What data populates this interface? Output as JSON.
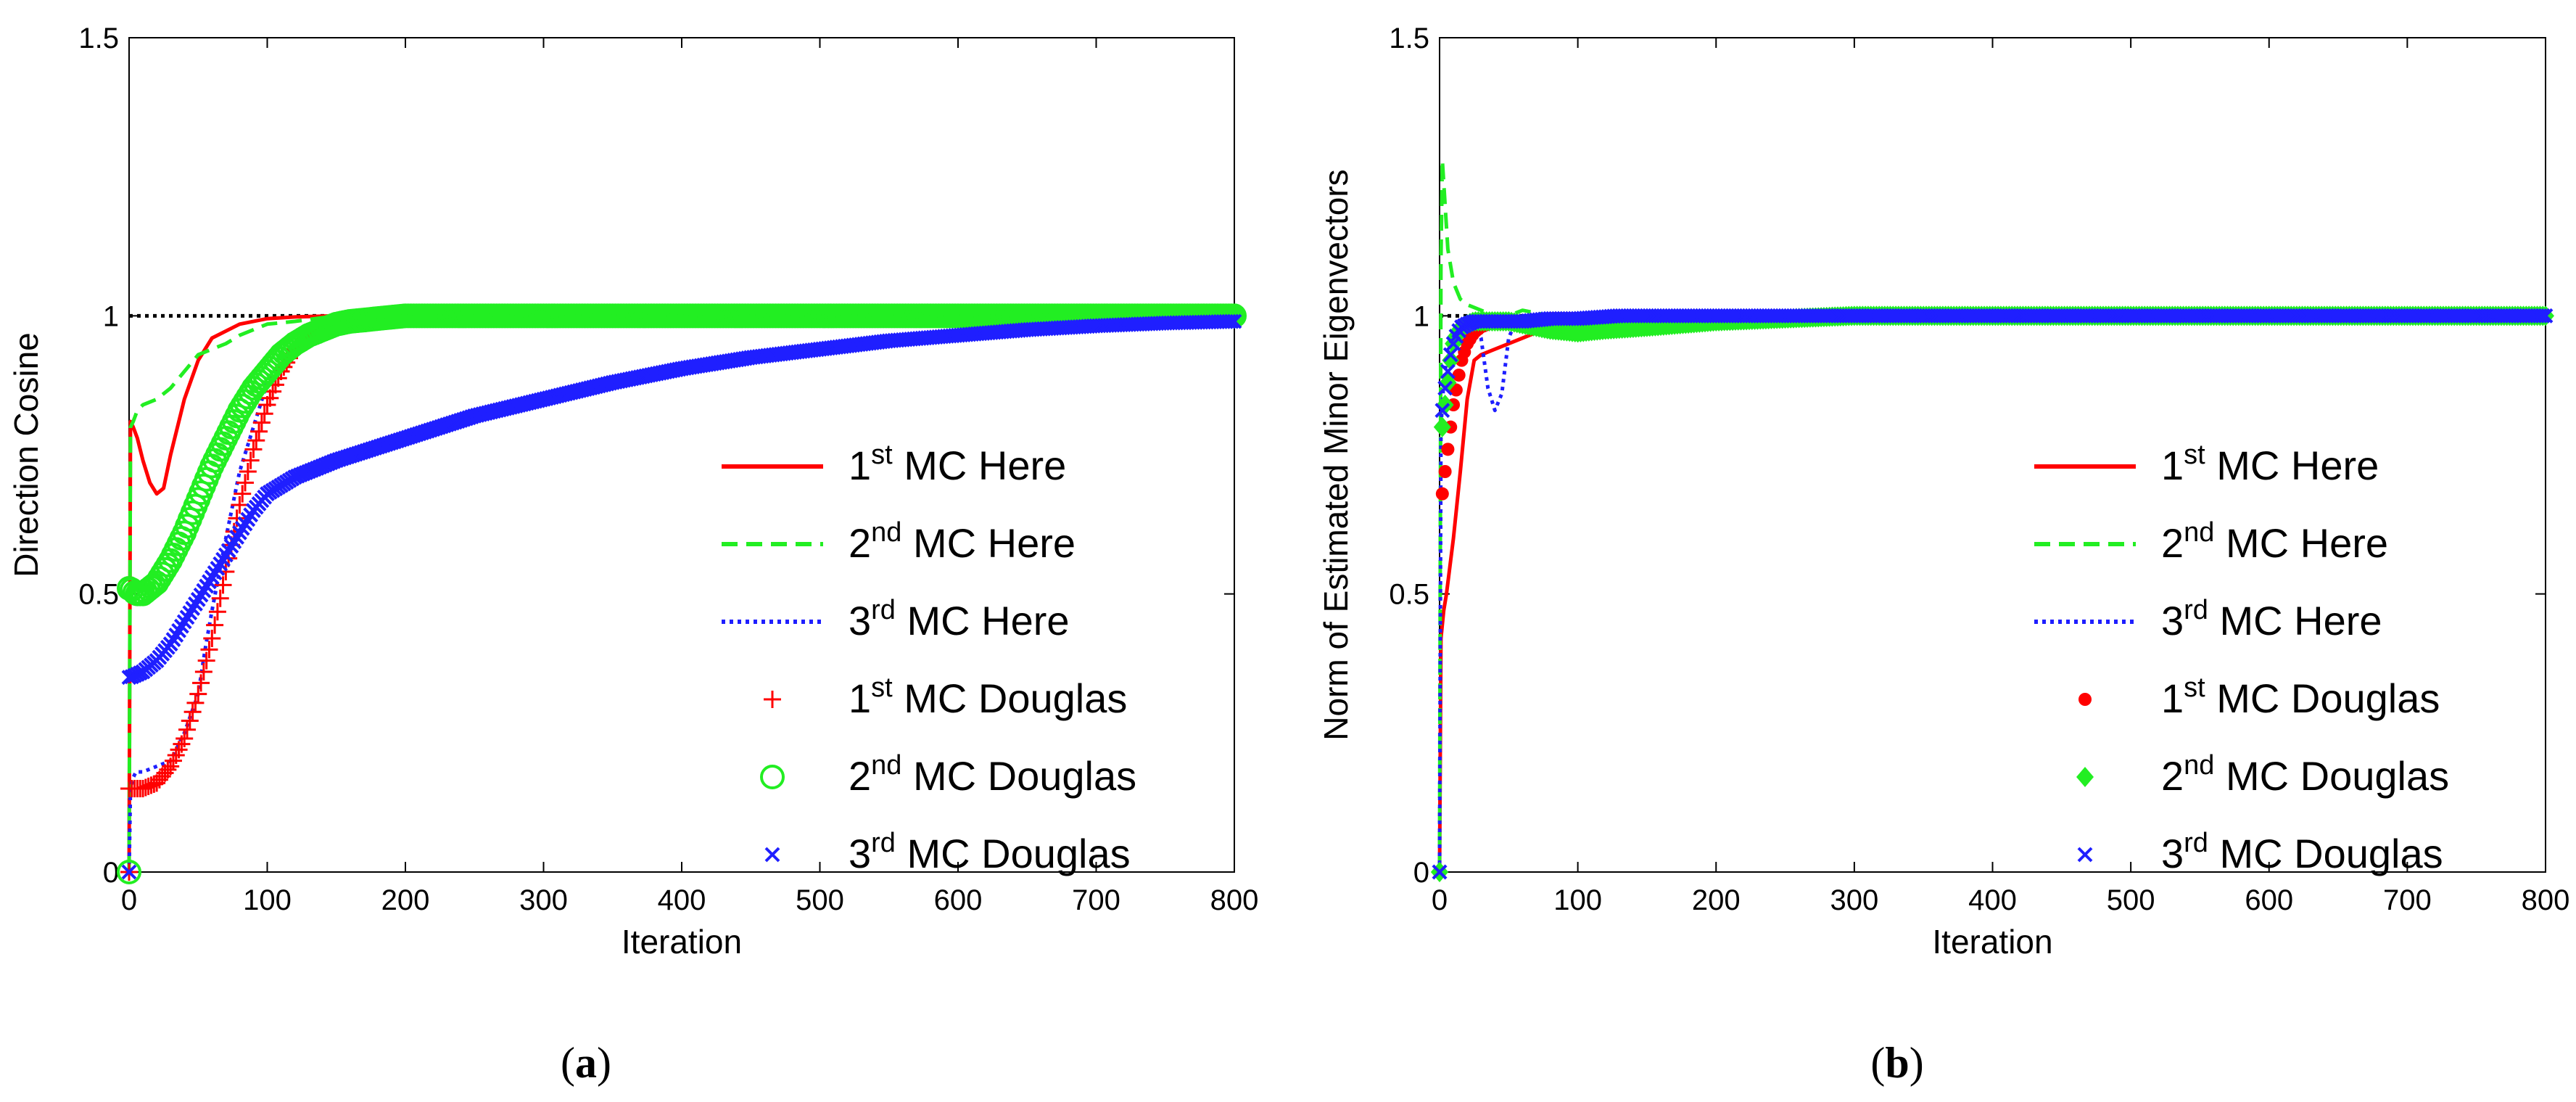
{
  "figure": {
    "captions": [
      {
        "open": "(",
        "letter": "a",
        "close": ")"
      },
      {
        "open": "(",
        "letter": "b",
        "close": ")"
      }
    ]
  },
  "chart_data": [
    {
      "type": "line",
      "panel": "a",
      "xlabel": "Iteration",
      "ylabel": "Direction Cosine",
      "xlim": [
        0,
        800
      ],
      "ylim": [
        0,
        1.5
      ],
      "xticks": [
        0,
        100,
        200,
        300,
        400,
        500,
        600,
        700,
        800
      ],
      "yticks": [
        0,
        0.5,
        1,
        1.5
      ],
      "ytick_labels": [
        "0",
        "0.5",
        "1",
        "1.5"
      ],
      "grid": false,
      "legend_position": "bottom-right",
      "reference_line": {
        "y": 1,
        "style": "black-dotted"
      },
      "colors": {
        "first": "#ff0000",
        "second": "#22ee22",
        "third": "#1f1fff",
        "ref": "#000000"
      },
      "series": [
        {
          "name": {
            "pre": "1",
            "sup": "st",
            "post": " MC Here"
          },
          "color": "#ff0000",
          "style": "solid",
          "x": [
            0,
            1,
            3,
            6,
            10,
            15,
            20,
            25,
            30,
            40,
            50,
            60,
            80,
            100,
            120,
            150,
            200,
            800
          ],
          "y": [
            0,
            0.81,
            0.8,
            0.78,
            0.74,
            0.7,
            0.68,
            0.69,
            0.75,
            0.85,
            0.92,
            0.96,
            0.985,
            0.995,
            0.998,
            1.0,
            1.0,
            1.0
          ]
        },
        {
          "name": {
            "pre": "2",
            "sup": "nd",
            "post": " MC Here"
          },
          "color": "#22ee22",
          "style": "dashed",
          "x": [
            0,
            1,
            3,
            6,
            10,
            20,
            30,
            40,
            50,
            60,
            70,
            80,
            100,
            120,
            150,
            200,
            800
          ],
          "y": [
            0,
            0.8,
            0.81,
            0.83,
            0.84,
            0.85,
            0.87,
            0.9,
            0.93,
            0.94,
            0.95,
            0.965,
            0.985,
            0.99,
            1.0,
            1.0,
            1.0
          ]
        },
        {
          "name": {
            "pre": "3",
            "sup": "rd",
            "post": " MC Here"
          },
          "color": "#1f1fff",
          "style": "dotted",
          "x": [
            0,
            1,
            3,
            5,
            10,
            20,
            30,
            40,
            50,
            55,
            60,
            70,
            80,
            100,
            120,
            150,
            200,
            800
          ],
          "y": [
            0,
            0.15,
            0.17,
            0.18,
            0.18,
            0.19,
            0.2,
            0.25,
            0.32,
            0.4,
            0.47,
            0.6,
            0.72,
            0.88,
            0.95,
            0.99,
            1.0,
            1.0
          ]
        },
        {
          "name": {
            "pre": "1",
            "sup": "st",
            "post": " MC Douglas"
          },
          "color": "#ff0000",
          "marker": "plus",
          "x": [
            0,
            1,
            10,
            20,
            30,
            40,
            50,
            60,
            70,
            80,
            90,
            100,
            110,
            120,
            130,
            140,
            160,
            180,
            200,
            250,
            300,
            400,
            500,
            600,
            700,
            800
          ],
          "y": [
            0.15,
            0.15,
            0.15,
            0.16,
            0.19,
            0.24,
            0.32,
            0.42,
            0.54,
            0.66,
            0.76,
            0.84,
            0.9,
            0.94,
            0.965,
            0.98,
            0.99,
            0.995,
            1.0,
            1.0,
            1.0,
            1.0,
            1.0,
            1.0,
            1.0,
            1.0
          ]
        },
        {
          "name": {
            "pre": "2",
            "sup": "nd",
            "post": " MC Douglas"
          },
          "color": "#22ee22",
          "marker": "circle",
          "x": [
            0,
            1,
            5,
            10,
            20,
            30,
            40,
            50,
            60,
            70,
            80,
            90,
            100,
            110,
            120,
            130,
            140,
            150,
            160,
            180,
            200,
            250,
            300,
            400,
            500,
            600,
            700,
            800
          ],
          "y": [
            0.51,
            0.51,
            0.5,
            0.5,
            0.52,
            0.56,
            0.61,
            0.67,
            0.73,
            0.78,
            0.83,
            0.87,
            0.9,
            0.93,
            0.95,
            0.965,
            0.975,
            0.985,
            0.99,
            0.995,
            1.0,
            1.0,
            1.0,
            1.0,
            1.0,
            1.0,
            1.0,
            1.0
          ]
        },
        {
          "name": {
            "pre": "3",
            "sup": "rd",
            "post": " MC Douglas"
          },
          "color": "#1f1fff",
          "marker": "x",
          "x": [
            0,
            1,
            10,
            20,
            30,
            40,
            50,
            60,
            70,
            80,
            90,
            100,
            120,
            150,
            200,
            250,
            300,
            350,
            400,
            450,
            500,
            550,
            600,
            650,
            700,
            750,
            800
          ],
          "y": [
            0.35,
            0.35,
            0.36,
            0.38,
            0.41,
            0.45,
            0.49,
            0.53,
            0.57,
            0.61,
            0.65,
            0.68,
            0.71,
            0.74,
            0.78,
            0.82,
            0.85,
            0.88,
            0.905,
            0.925,
            0.94,
            0.955,
            0.965,
            0.975,
            0.982,
            0.987,
            0.99
          ]
        }
      ]
    },
    {
      "type": "line",
      "panel": "b",
      "xlabel": "Iteration",
      "ylabel": "Norm of Estimated Minor Eigenvectors",
      "xlim": [
        0,
        800
      ],
      "ylim": [
        0,
        1.5
      ],
      "xticks": [
        0,
        100,
        200,
        300,
        400,
        500,
        600,
        700,
        800
      ],
      "yticks": [
        0,
        0.5,
        1,
        1.5
      ],
      "ytick_labels": [
        "0",
        "0.5",
        "1",
        "1.5"
      ],
      "grid": false,
      "legend_position": "bottom-right",
      "reference_line": {
        "y": 1,
        "style": "black-dotted"
      },
      "colors": {
        "first": "#ff0000",
        "second": "#22ee22",
        "third": "#1f1fff",
        "ref": "#000000"
      },
      "series": [
        {
          "name": {
            "pre": "1",
            "sup": "st",
            "post": " MC Here"
          },
          "color": "#ff0000",
          "style": "solid",
          "x": [
            0,
            1,
            3,
            5,
            10,
            15,
            20,
            25,
            30,
            40,
            50,
            60,
            70,
            80,
            100,
            120,
            150,
            800
          ],
          "y": [
            0,
            0.42,
            0.47,
            0.5,
            0.6,
            0.72,
            0.85,
            0.92,
            0.93,
            0.94,
            0.95,
            0.96,
            0.97,
            0.98,
            0.99,
            0.995,
            1.0,
            1.0
          ]
        },
        {
          "name": {
            "pre": "2",
            "sup": "nd",
            "post": " MC Here"
          },
          "color": "#22ee22",
          "style": "dashed",
          "x": [
            0,
            1,
            2,
            4,
            6,
            10,
            15,
            20,
            30,
            40,
            50,
            60,
            80,
            100,
            150,
            200,
            800
          ],
          "y": [
            0,
            1.1,
            1.28,
            1.2,
            1.12,
            1.06,
            1.03,
            1.02,
            1.01,
            1.0,
            1.0,
            1.01,
            1.0,
            1.0,
            1.0,
            1.0,
            1.0
          ]
        },
        {
          "name": {
            "pre": "3",
            "sup": "rd",
            "post": " MC Here"
          },
          "color": "#1f1fff",
          "style": "dotted",
          "x": [
            0,
            1,
            3,
            5,
            10,
            15,
            20,
            25,
            30,
            35,
            40,
            45,
            50,
            55,
            60,
            80,
            100,
            150,
            800
          ],
          "y": [
            0,
            0.8,
            0.88,
            0.92,
            0.95,
            0.97,
            0.98,
            0.985,
            0.96,
            0.87,
            0.83,
            0.86,
            0.96,
            0.99,
            1.0,
            1.0,
            1.0,
            1.0,
            1.0
          ]
        },
        {
          "name": {
            "pre": "1",
            "sup": "st",
            "post": " MC Douglas"
          },
          "color": "#ff0000",
          "marker": "dot",
          "x": [
            0,
            1,
            2,
            4,
            6,
            8,
            10,
            13,
            16,
            20,
            25,
            30,
            40,
            50,
            60,
            80,
            100,
            130,
            160,
            200,
            300,
            400,
            500,
            600,
            700,
            800
          ],
          "y": [
            0,
            0.65,
            0.68,
            0.72,
            0.76,
            0.8,
            0.84,
            0.88,
            0.92,
            0.95,
            0.97,
            0.98,
            0.99,
            0.99,
            0.99,
            0.995,
            0.995,
            1.0,
            1.0,
            1.0,
            1.0,
            1.0,
            1.0,
            1.0,
            1.0,
            1.0
          ]
        },
        {
          "name": {
            "pre": "2",
            "sup": "nd",
            "post": " MC Douglas"
          },
          "color": "#22ee22",
          "marker": "diamond",
          "x": [
            0,
            1,
            2,
            4,
            6,
            8,
            10,
            13,
            16,
            20,
            25,
            30,
            40,
            50,
            60,
            80,
            100,
            120,
            150,
            200,
            300,
            400,
            500,
            600,
            700,
            800
          ],
          "y": [
            0,
            0.78,
            0.8,
            0.84,
            0.88,
            0.92,
            0.95,
            0.97,
            0.98,
            0.985,
            0.99,
            0.99,
            0.99,
            0.99,
            0.985,
            0.975,
            0.97,
            0.975,
            0.98,
            0.99,
            1.0,
            1.0,
            1.0,
            1.0,
            1.0,
            1.0
          ]
        },
        {
          "name": {
            "pre": "3",
            "sup": "rd",
            "post": " MC Douglas"
          },
          "color": "#1f1fff",
          "marker": "x",
          "x": [
            0,
            1,
            2,
            4,
            6,
            8,
            10,
            13,
            16,
            20,
            25,
            30,
            40,
            50,
            60,
            80,
            100,
            130,
            160,
            200,
            300,
            400,
            500,
            600,
            700,
            800
          ],
          "y": [
            0,
            0.8,
            0.83,
            0.87,
            0.9,
            0.93,
            0.95,
            0.97,
            0.98,
            0.985,
            0.99,
            0.99,
            0.99,
            0.99,
            0.99,
            0.995,
            0.995,
            1.0,
            1.0,
            1.0,
            1.0,
            1.0,
            1.0,
            1.0,
            1.0,
            1.0
          ]
        }
      ]
    }
  ]
}
